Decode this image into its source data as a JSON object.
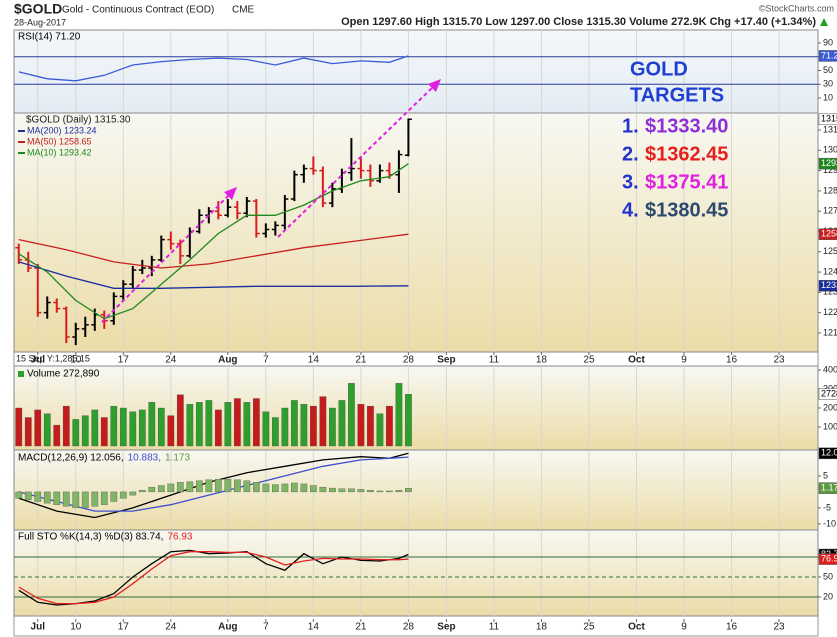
{
  "header": {
    "symbol": "$GOLD",
    "name": "Gold - Continuous Contract (EOD)",
    "exchange": "CME",
    "date": "28-Aug-2017",
    "copyright": "©StockCharts.com",
    "quote": "Open 1297.60 High 1315.70 Low 1297.00 Close 1315.30 Volume 272.9K Chg +17.40 (+1.34%)"
  },
  "axis_note": "15 Sep Y:1,285.15",
  "annotations": {
    "title": [
      "GOLD",
      "TARGETS"
    ],
    "targets": [
      {
        "number": "1.",
        "price": "$1333.40",
        "color": "#8e2fd6"
      },
      {
        "number": "2.",
        "price": "$1362.45",
        "color": "#e8201c"
      },
      {
        "number": "3.",
        "price": "$1375.41",
        "color": "#e020e0"
      },
      {
        "number": "4.",
        "price": "$1380.45",
        "color": "#2c4a6e"
      }
    ]
  },
  "chart_data": [
    {
      "type": "line",
      "xlim": [
        -0.5,
        84.1
      ],
      "ylim": [
        -11.8,
        108.9
      ],
      "yticks": [
        90,
        70,
        50,
        30,
        10
      ],
      "reference_lines": [
        70,
        30
      ],
      "series": [
        {
          "name": "RSI(14) 71.20",
          "color": "#3b5bd6",
          "last_label": "71.20",
          "x": [
            0,
            3,
            6,
            9,
            12,
            15,
            18,
            21,
            24,
            27,
            30,
            33,
            36,
            39,
            41
          ],
          "values": [
            48,
            38,
            35,
            43,
            58,
            63,
            66,
            68,
            66,
            58,
            68,
            60,
            64,
            62,
            71.2
          ]
        }
      ]
    },
    {
      "type": "ohlc",
      "name": "$GOLD (Daily) 1315.30",
      "last_label": "1315.3",
      "up_color": "#000000",
      "down_color": "#d81c1c",
      "grid": true,
      "xlim": [
        -0.5,
        84.1
      ],
      "ylim": [
        1200.6,
        1318.4
      ],
      "yticks": [
        1310,
        1300,
        1290,
        1280,
        1270,
        1260,
        1250,
        1240,
        1230,
        1220,
        1210
      ],
      "xticks": [
        {
          "value": 2,
          "label": "Jul"
        },
        {
          "value": 6,
          "label": "10"
        },
        {
          "value": 11,
          "label": "17"
        },
        {
          "value": 16,
          "label": "24"
        },
        {
          "value": 22,
          "label": "Aug"
        },
        {
          "value": 26,
          "label": "7"
        },
        {
          "value": 31,
          "label": "14"
        },
        {
          "value": 36,
          "label": "21"
        },
        {
          "value": 41,
          "label": "28"
        },
        {
          "value": 45,
          "label": "Sep"
        },
        {
          "value": 50,
          "label": "11"
        },
        {
          "value": 55,
          "label": "18"
        },
        {
          "value": 60,
          "label": "25"
        },
        {
          "value": 65,
          "label": "Oct"
        },
        {
          "value": 70,
          "label": "9"
        },
        {
          "value": 75,
          "label": "16"
        },
        {
          "value": 80,
          "label": "23"
        }
      ],
      "open": [
        1252,
        1246,
        1242,
        1220,
        1225,
        1222,
        1208,
        1212,
        1214,
        1219,
        1216,
        1228,
        1234,
        1241,
        1242,
        1246,
        1256,
        1254,
        1248,
        1260,
        1268,
        1270,
        1268,
        1272,
        1269,
        1275,
        1259,
        1261,
        1263,
        1276,
        1288,
        1291,
        1290,
        1274,
        1281,
        1289,
        1291,
        1290,
        1285,
        1290,
        1288,
        1297.6
      ],
      "high": [
        1254,
        1250,
        1244,
        1228,
        1227,
        1223,
        1215,
        1218,
        1222,
        1221,
        1230,
        1236,
        1243,
        1246,
        1248,
        1258,
        1260,
        1256,
        1262,
        1271,
        1272,
        1275,
        1276,
        1275,
        1277,
        1276,
        1264,
        1265,
        1278,
        1290,
        1293,
        1297,
        1292,
        1284,
        1291,
        1306,
        1297,
        1293,
        1293,
        1294,
        1300,
        1315.7
      ],
      "low": [
        1244,
        1240,
        1218,
        1217,
        1220,
        1205,
        1204,
        1208,
        1211,
        1212,
        1214,
        1226,
        1232,
        1239,
        1238,
        1245,
        1251,
        1244,
        1247,
        1259,
        1264,
        1266,
        1267,
        1266,
        1267,
        1257,
        1257,
        1258,
        1261,
        1275,
        1284,
        1288,
        1272,
        1272,
        1279,
        1285,
        1286,
        1282,
        1284,
        1286,
        1279,
        1297
      ],
      "close": [
        1246,
        1242,
        1220,
        1225,
        1222,
        1208,
        1212,
        1214,
        1219,
        1216,
        1228,
        1234,
        1241,
        1242,
        1246,
        1256,
        1254,
        1248,
        1260,
        1268,
        1270,
        1268,
        1272,
        1269,
        1275,
        1259,
        1261,
        1263,
        1276,
        1288,
        1291,
        1290,
        1274,
        1281,
        1289,
        1291,
        1290,
        1285,
        1290,
        1288,
        1297.9,
        1315.3
      ],
      "series": [
        {
          "name": "MA(200) 1233.24",
          "color": "#1a2f9e",
          "last_label": "1233.2",
          "x": [
            0,
            5,
            10,
            15,
            20,
            25,
            30,
            35,
            41
          ],
          "values": [
            1245,
            1238,
            1232,
            1232,
            1232.5,
            1233,
            1233,
            1233,
            1233.24
          ]
        },
        {
          "name": "MA(50) 1258.65",
          "color": "#c81e1e",
          "last_label": "1258.6",
          "x": [
            0,
            5,
            10,
            15,
            20,
            25,
            30,
            35,
            41
          ],
          "values": [
            1256,
            1251,
            1245,
            1242,
            1244,
            1248,
            1252,
            1255,
            1258.65
          ]
        },
        {
          "name": "MA(10) 1293.42",
          "color": "#1e8a1e",
          "last_label": "1293.4",
          "x": [
            0,
            3,
            6,
            9,
            12,
            15,
            18,
            21,
            24,
            27,
            30,
            33,
            36,
            39,
            41
          ],
          "values": [
            1249,
            1240,
            1226,
            1217,
            1222,
            1234,
            1246,
            1259,
            1268,
            1268,
            1273,
            1280,
            1285,
            1287,
            1293.42
          ]
        }
      ]
    },
    {
      "type": "bar",
      "xlim": [
        -0.5,
        84.1
      ],
      "ylim": [
        -21000,
        421000
      ],
      "up_color": "#2e9e2e",
      "down_color": "#c41c1c",
      "yticks": [
        {
          "value": 400000,
          "label": "400K"
        },
        {
          "value": 300000,
          "label": "300K"
        },
        {
          "value": 200000,
          "label": "200K"
        },
        {
          "value": 100000,
          "label": "100K"
        }
      ],
      "series": [
        {
          "name": "Volume 272,890",
          "color": "#2e9e2e",
          "last_label": "272890",
          "values": [
            200000,
            150000,
            190000,
            170000,
            110000,
            210000,
            140000,
            160000,
            190000,
            150000,
            210000,
            200000,
            180000,
            190000,
            230000,
            200000,
            160000,
            270000,
            220000,
            230000,
            240000,
            190000,
            230000,
            250000,
            230000,
            250000,
            180000,
            150000,
            200000,
            240000,
            220000,
            210000,
            260000,
            200000,
            240000,
            330000,
            220000,
            210000,
            170000,
            210000,
            330000,
            272890
          ]
        }
      ]
    },
    {
      "type": "combo",
      "xlim": [
        -0.5,
        84.1
      ],
      "ylim": [
        -11.9,
        13.1
      ],
      "yticks": [
        5,
        -5,
        -10
      ],
      "series": [
        {
          "name": "MACD(12,26,9) 12.056,",
          "color": "#000000",
          "last_label": "12.056",
          "x": [
            0,
            4,
            8,
            12,
            16,
            20,
            24,
            28,
            32,
            36,
            39,
            41
          ],
          "values": [
            -2,
            -6,
            -8,
            -5,
            -1,
            3,
            6,
            8,
            10,
            11,
            10.5,
            12.056
          ]
        },
        {
          "name": "10.883,",
          "color": "#3f4fd0",
          "x": [
            0,
            4,
            8,
            12,
            16,
            20,
            24,
            28,
            32,
            36,
            39,
            41
          ],
          "values": [
            0,
            -3,
            -6,
            -6,
            -4,
            -1,
            2,
            5,
            8,
            10,
            10.5,
            10.883
          ]
        },
        {
          "name": "1.173",
          "kind": "bar",
          "color": "#7fb565",
          "last_label": "1.173",
          "values": [
            -2,
            -2.5,
            -3,
            -3.5,
            -4,
            -4.5,
            -5,
            -5,
            -4.5,
            -4,
            -3,
            -2,
            -1,
            0.5,
            1.5,
            2,
            2.5,
            3,
            3.2,
            3.5,
            3.8,
            4,
            4,
            3.8,
            3.5,
            3,
            2.5,
            2.3,
            2.5,
            2.8,
            2.5,
            2,
            1.5,
            1.2,
            1,
            1,
            0.8,
            0.5,
            0.3,
            0.3,
            0.5,
            1.173
          ]
        }
      ]
    },
    {
      "type": "line",
      "xlim": [
        -0.5,
        84.1
      ],
      "ylim": [
        -8.6,
        120.6
      ],
      "yticks": [
        80,
        50,
        20
      ],
      "reference_lines": [
        80,
        50,
        20
      ],
      "series": [
        {
          "name": "Full STO %K(14,3) %D(3) 83.74,",
          "color": "#000000",
          "last_label": "83.74",
          "x": [
            0,
            2,
            4,
            6,
            8,
            10,
            12,
            14,
            16,
            18,
            20,
            22,
            24,
            26,
            28,
            30,
            32,
            34,
            36,
            38,
            40,
            41
          ],
          "values": [
            30,
            12,
            8,
            10,
            14,
            25,
            50,
            70,
            88,
            90,
            85,
            86,
            88,
            70,
            60,
            85,
            70,
            80,
            75,
            74,
            78,
            83.74
          ]
        },
        {
          "name": "76.93",
          "color": "#e02020",
          "last_label": "76.93",
          "x": [
            0,
            2,
            4,
            6,
            8,
            10,
            12,
            14,
            16,
            18,
            20,
            22,
            24,
            26,
            28,
            30,
            32,
            34,
            36,
            38,
            40,
            41
          ],
          "values": [
            35,
            18,
            10,
            10,
            12,
            20,
            40,
            62,
            82,
            88,
            88,
            87,
            87,
            80,
            68,
            74,
            78,
            77,
            77,
            76,
            76,
            76.93
          ]
        }
      ]
    }
  ]
}
